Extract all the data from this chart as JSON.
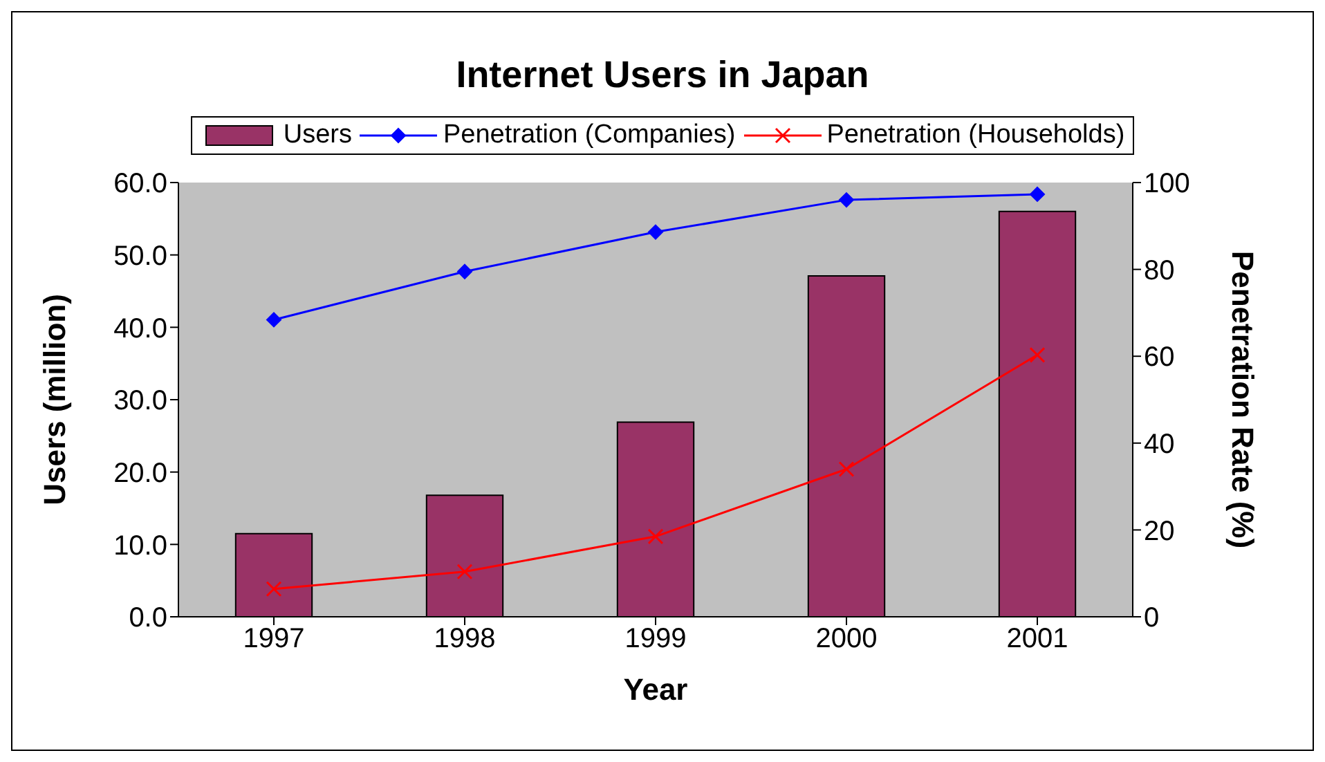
{
  "chart_data": {
    "type": "bar",
    "title": "Internet Users in Japan",
    "xlabel": "Year",
    "ylabel": "Users (million)",
    "y2label": "Penetration Rate (%)",
    "categories": [
      "1997",
      "1998",
      "1999",
      "2000",
      "2001"
    ],
    "series": [
      {
        "name": "Users",
        "color": "#993366",
        "values": [
          11.5,
          16.8,
          26.9,
          47.1,
          56.0
        ]
      },
      {
        "name": "Penetration (Companies)",
        "type": "line",
        "axis": "y2",
        "marker": "diamond",
        "color": "#0000ff",
        "values": [
          68.4,
          79.5,
          88.6,
          96.0,
          97.3
        ]
      },
      {
        "name": "Penetration (Households)",
        "type": "line",
        "axis": "y2",
        "marker": "cross",
        "color": "#ff0000",
        "values": [
          6.4,
          10.4,
          18.5,
          34.0,
          60.3
        ]
      }
    ],
    "ylim": [
      0,
      60
    ],
    "yticks": [
      {
        "value": 0,
        "label": "0.0"
      },
      {
        "value": 10,
        "label": "10.0"
      },
      {
        "value": 20,
        "label": "20.0"
      },
      {
        "value": 30,
        "label": "30.0"
      },
      {
        "value": 40,
        "label": "40.0"
      },
      {
        "value": 50,
        "label": "50.0"
      },
      {
        "value": 60,
        "label": "60.0"
      }
    ],
    "y2lim": [
      0,
      100
    ],
    "y2ticks": [
      0,
      20,
      40,
      60,
      80,
      100
    ],
    "grid": false,
    "legend": "top",
    "line_style": "solid"
  }
}
